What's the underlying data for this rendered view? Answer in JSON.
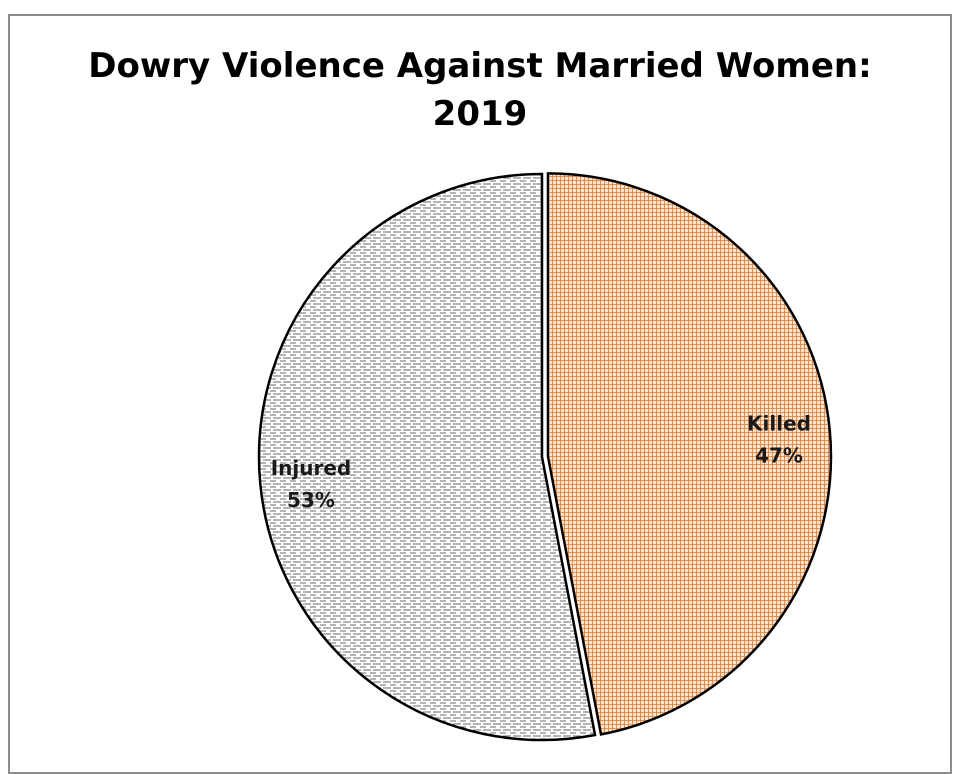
{
  "chart_data": {
    "type": "pie",
    "title": [
      "Dowry Violence Against Married Women:",
      "2019"
    ],
    "slices": [
      {
        "name": "Killed",
        "value": 47,
        "label": "47%",
        "color": "#e07a2c",
        "pattern": "crosshatch-grid"
      },
      {
        "name": "Injured",
        "value": 53,
        "label": "53%",
        "color": "#555555",
        "pattern": "dashed-horizontal"
      }
    ],
    "legend": "none",
    "border_color": "#8c8c8c"
  }
}
